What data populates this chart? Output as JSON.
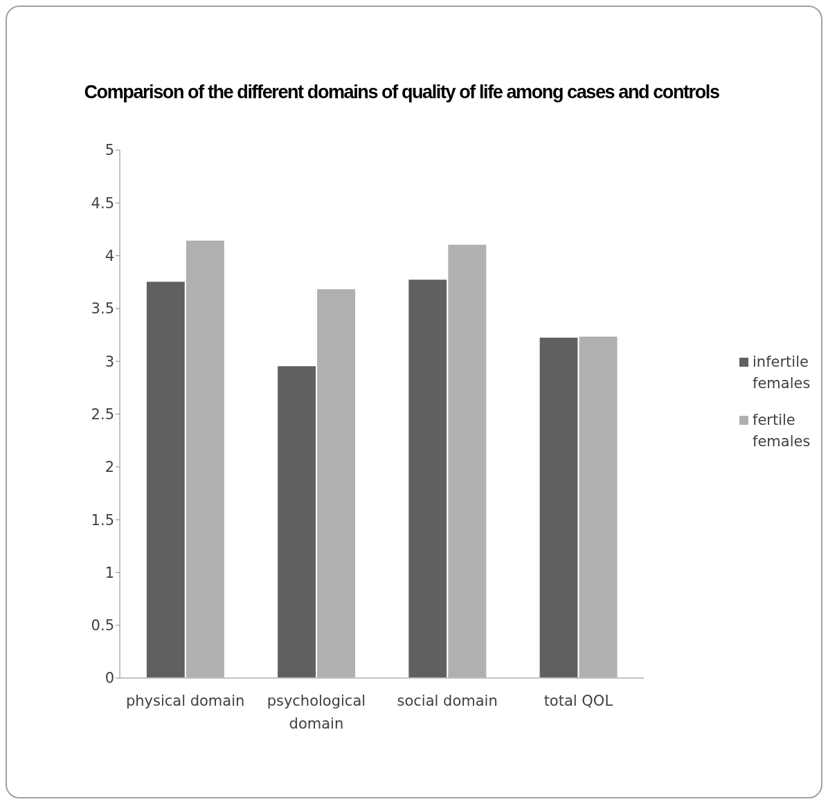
{
  "chart_data": {
    "type": "bar",
    "title": "Comparison of the different domains of quality of life among cases and controls",
    "categories": [
      "physical domain",
      "psychological domain",
      "social domain",
      "total QOL"
    ],
    "series": [
      {
        "name": "infertile females",
        "color": "#606060",
        "values": [
          3.76,
          2.96,
          3.78,
          3.23
        ]
      },
      {
        "name": "fertile females",
        "color": "#b0b0b0",
        "values": [
          4.15,
          3.69,
          4.11,
          3.24
        ]
      }
    ],
    "ylim": [
      0,
      5
    ],
    "yticks": [
      0,
      0.5,
      1,
      1.5,
      2,
      2.5,
      3,
      3.5,
      4,
      4.5,
      5
    ],
    "grid": false,
    "legend": "right"
  }
}
